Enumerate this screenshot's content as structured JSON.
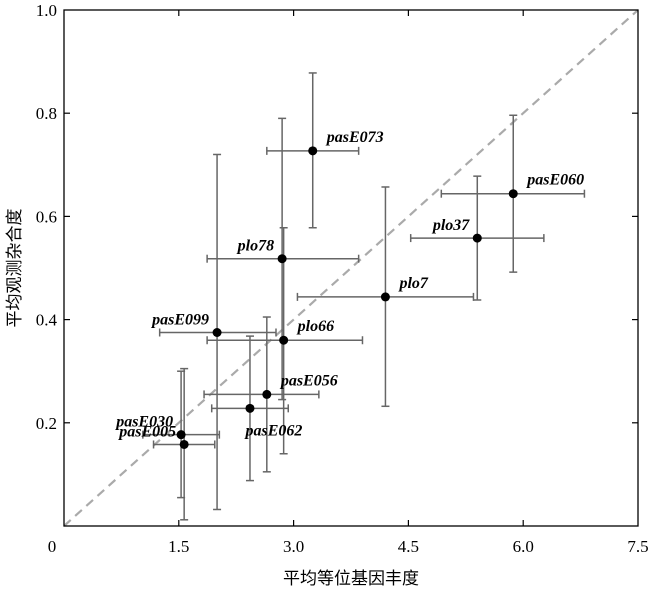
{
  "chart_data": {
    "type": "scatter",
    "xlabel": "平均等位基因丰度",
    "ylabel": "平均观测杂合度",
    "xlim": [
      0,
      7.5
    ],
    "ylim": [
      0,
      1.0
    ],
    "x_ticks": [
      {
        "value": 0,
        "label": "0"
      },
      {
        "value": 1.5,
        "label": "1.5"
      },
      {
        "value": 3.0,
        "label": "3.0"
      },
      {
        "value": 4.5,
        "label": "4.5"
      },
      {
        "value": 6.0,
        "label": "6.0"
      },
      {
        "value": 7.5,
        "label": "7.5"
      }
    ],
    "y_ticks": [
      {
        "value": 0.2,
        "label": "0.2"
      },
      {
        "value": 0.4,
        "label": "0.4"
      },
      {
        "value": 0.6,
        "label": "0.6"
      },
      {
        "value": 0.8,
        "label": "0.8"
      },
      {
        "value": 1.0,
        "label": "1.0"
      }
    ],
    "reference_line": {
      "style": "dashed",
      "color": "#aaaaaa",
      "from": [
        0,
        0
      ],
      "to": [
        7.5,
        1.0
      ]
    },
    "point_color": "#000000",
    "errorbar_color": "#666666",
    "points": [
      {
        "label": "pasE073",
        "x": 3.25,
        "y": 0.727,
        "x_err": [
          2.65,
          3.85
        ],
        "y_err": [
          0.578,
          0.878
        ],
        "label_pos": "right"
      },
      {
        "label": "pasE060",
        "x": 5.87,
        "y": 0.644,
        "x_err": [
          4.93,
          6.8
        ],
        "y_err": [
          0.492,
          0.796
        ],
        "label_pos": "right"
      },
      {
        "label": "plo37",
        "x": 5.4,
        "y": 0.558,
        "x_err": [
          4.53,
          6.27
        ],
        "y_err": [
          0.438,
          0.678
        ],
        "label_pos": "left"
      },
      {
        "label": "plo78",
        "x": 2.85,
        "y": 0.518,
        "x_err": [
          1.87,
          3.85
        ],
        "y_err": [
          0.245,
          0.79
        ],
        "label_pos": "left"
      },
      {
        "label": "plo7",
        "x": 4.2,
        "y": 0.444,
        "x_err": [
          3.05,
          5.35
        ],
        "y_err": [
          0.232,
          0.657
        ],
        "label_pos": "right"
      },
      {
        "label": "pasE099",
        "x": 2.0,
        "y": 0.375,
        "x_err": [
          1.25,
          2.77
        ],
        "y_err": [
          0.032,
          0.72
        ],
        "label_pos": "left"
      },
      {
        "label": "plo66",
        "x": 2.87,
        "y": 0.36,
        "x_err": [
          1.87,
          3.9
        ],
        "y_err": [
          0.14,
          0.578
        ],
        "label_pos": "right"
      },
      {
        "label": "pasE056",
        "x": 2.65,
        "y": 0.255,
        "x_err": [
          1.83,
          3.33
        ],
        "y_err": [
          0.105,
          0.405
        ],
        "label_pos": "right"
      },
      {
        "label": "pasE062",
        "x": 2.43,
        "y": 0.228,
        "x_err": [
          1.93,
          2.93
        ],
        "y_err": [
          0.088,
          0.368
        ],
        "label_pos": "below"
      },
      {
        "label": "pasE030",
        "x": 1.53,
        "y": 0.177,
        "x_err": [
          1.03,
          2.03
        ],
        "y_err": [
          0.055,
          0.3
        ],
        "label_pos": "left"
      },
      {
        "label": "pasE005",
        "x": 1.57,
        "y": 0.158,
        "x_err": [
          1.17,
          1.97
        ],
        "y_err": [
          0.012,
          0.305
        ],
        "label_pos": "left"
      }
    ]
  }
}
